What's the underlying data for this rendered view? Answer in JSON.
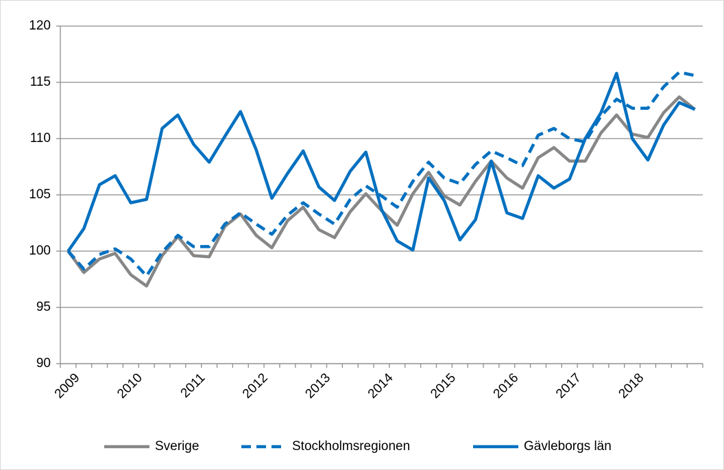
{
  "chart_data": {
    "type": "line",
    "categories": [
      "2009",
      null,
      null,
      null,
      "2010",
      null,
      null,
      null,
      "2011",
      null,
      null,
      null,
      "2012",
      null,
      null,
      null,
      "2013",
      null,
      null,
      null,
      "2014",
      null,
      null,
      null,
      "2015",
      null,
      null,
      null,
      "2016",
      null,
      null,
      null,
      "2017",
      null,
      null,
      null,
      "2018",
      null,
      null,
      null,
      null
    ],
    "series": [
      {
        "name": "Sverige",
        "color": "#878787",
        "dash": false,
        "values": [
          100,
          98.1,
          99.3,
          99.8,
          97.9,
          96.9,
          99.6,
          101.3,
          99.6,
          99.5,
          102.2,
          103.3,
          101.4,
          100.3,
          102.7,
          103.9,
          101.9,
          101.2,
          103.5,
          105.1,
          103.6,
          102.3,
          105.1,
          107.0,
          104.9,
          104.1,
          106.2,
          108.0,
          106.5,
          105.6,
          108.3,
          109.2,
          108.0,
          108.0,
          110.5,
          112.1,
          110.4,
          110.1,
          112.3,
          113.7,
          112.6
        ]
      },
      {
        "name": "Stockholmsregionen",
        "color": "#0070c0",
        "dash": true,
        "values": [
          100,
          98.4,
          99.7,
          100.2,
          99.3,
          97.8,
          99.9,
          101.4,
          100.4,
          100.4,
          102.4,
          103.4,
          102.4,
          101.5,
          103.2,
          104.3,
          103.3,
          102.4,
          104.6,
          105.8,
          104.9,
          103.9,
          106.2,
          107.9,
          106.5,
          106.0,
          107.7,
          108.9,
          108.3,
          107.6,
          110.3,
          110.9,
          110.0,
          109.7,
          112.0,
          113.5,
          112.7,
          112.7,
          114.6,
          115.9,
          115.6
        ]
      },
      {
        "name": "Gävleborgs län",
        "color": "#0070c0",
        "dash": false,
        "values": [
          100,
          102.0,
          105.9,
          106.7,
          104.3,
          104.6,
          110.9,
          112.1,
          109.5,
          107.9,
          110.2,
          112.4,
          109.0,
          104.7,
          106.9,
          108.9,
          105.7,
          104.5,
          107.1,
          108.8,
          103.7,
          100.9,
          100.1,
          106.5,
          104.5,
          101.0,
          102.8,
          108.0,
          103.4,
          102.9,
          106.7,
          105.6,
          106.4,
          110.0,
          112.3,
          115.8,
          110.0,
          108.1,
          111.2,
          113.2,
          112.6
        ]
      }
    ],
    "ylim": [
      90,
      120
    ],
    "yticks": [
      90,
      95,
      100,
      105,
      110,
      115,
      120
    ],
    "grid": true,
    "legend": "bottom"
  }
}
